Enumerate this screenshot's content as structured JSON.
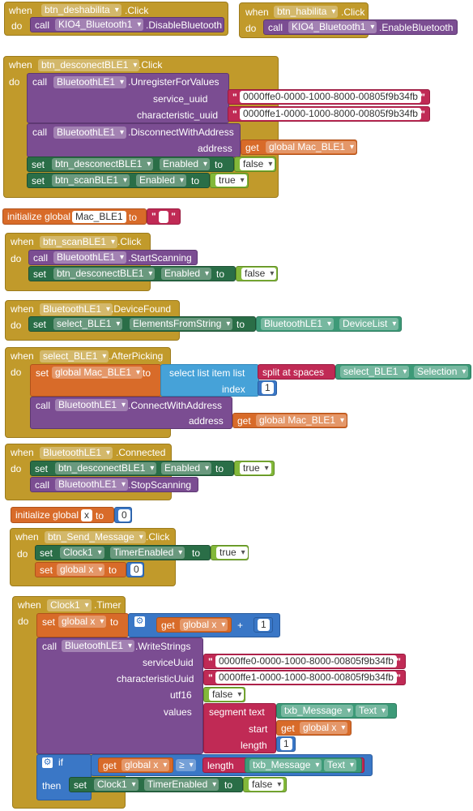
{
  "kw": {
    "when": "when",
    "do": "do",
    "call": "call",
    "set": "set",
    "to": "to",
    "get": "get",
    "initialize_global": "initialize global",
    "if": "if",
    "then": "then",
    "dot": "."
  },
  "ev_disable": {
    "component": "btn_deshabilita",
    "event": ".Click",
    "call_component": "KIO4_Bluetooth1",
    "method": ".DisableBluetooth"
  },
  "ev_enable": {
    "component": "btn_habilita",
    "event": ".Click",
    "call_component": "KIO4_Bluetooth1",
    "method": ".EnableBluetooth"
  },
  "ev_disconnect": {
    "component": "btn_desconectBLE1",
    "event": ".Click",
    "call1_component": "BluetoothLE1",
    "call1_method": ".UnregisterForValues",
    "param_service": "service_uuid",
    "service_value": "0000ffe0-0000-1000-8000-00805f9b34fb",
    "param_char": "characteristic_uuid",
    "char_value": "0000ffe1-0000-1000-8000-00805f9b34fb",
    "call2_component": "BluetoothLE1",
    "call2_method": ".DisconnectWithAddress",
    "param_address": "address",
    "address_var": "global Mac_BLE1",
    "set1_component": "btn_desconectBLE1",
    "set1_prop": "Enabled",
    "set1_value": "false",
    "set2_component": "btn_scanBLE1",
    "set2_prop": "Enabled",
    "set2_value": "true"
  },
  "global_mac": {
    "name": "Mac_BLE1",
    "value": ""
  },
  "ev_scan": {
    "component": "btn_scanBLE1",
    "event": ".Click",
    "call_component": "BluetoothLE1",
    "call_method": ".StartScanning",
    "set_component": "btn_desconectBLE1",
    "set_prop": "Enabled",
    "set_value": "false"
  },
  "ev_found": {
    "component": "BluetoothLE1",
    "event": ".DeviceFound",
    "set_component": "select_BLE1",
    "set_prop": "ElementsFromString",
    "src_component": "BluetoothLE1",
    "src_prop": "DeviceList"
  },
  "ev_picking": {
    "component": "select_BLE1",
    "event": ".AfterPicking",
    "set_var": "global Mac_BLE1",
    "select_label": "select list item  list",
    "index_label": "index",
    "index_value": "1",
    "split_label": "split at spaces",
    "sel_component": "select_BLE1",
    "sel_prop": "Selection",
    "call_component": "BluetoothLE1",
    "call_method": ".ConnectWithAddress",
    "param_address": "address",
    "address_var": "global Mac_BLE1"
  },
  "ev_connected": {
    "component": "BluetoothLE1",
    "event": ".Connected",
    "set_component": "btn_desconectBLE1",
    "set_prop": "Enabled",
    "set_value": "true",
    "call_component": "BluetoothLE1",
    "call_method": ".StopScanning"
  },
  "global_x": {
    "name": "x",
    "value": "0"
  },
  "ev_send": {
    "component": "btn_Send_Message",
    "event": ".Click",
    "set1_component": "Clock1",
    "set1_prop": "TimerEnabled",
    "set1_value": "true",
    "set2_var": "global x",
    "set2_value": "0"
  },
  "ev_timer": {
    "component": "Clock1",
    "event": ".Timer",
    "set_var": "global x",
    "get_var": "global x",
    "plus": "+",
    "add_value": "1",
    "call_component": "BluetoothLE1",
    "call_method": ".WriteStrings",
    "param_service": "serviceUuid",
    "service_value": "0000ffe0-0000-1000-8000-00805f9b34fb",
    "param_char": "characteristicUuid",
    "char_value": "0000ffe1-0000-1000-8000-00805f9b34fb",
    "param_utf16": "utf16",
    "utf16_value": "false",
    "param_values": "values",
    "segment_label": "segment  text",
    "seg_component": "txb_Message",
    "seg_prop": "Text",
    "start_label": "start",
    "start_var": "global x",
    "length_label": "length",
    "length_value": "1",
    "if_get_var": "global x",
    "compare_op": "≥",
    "length_fn": "length",
    "len_component": "txb_Message",
    "len_prop": "Text",
    "then_component": "Clock1",
    "then_prop": "TimerEnabled",
    "then_value": "false"
  },
  "colors": {
    "event": "#c19a2b",
    "procedure": "#7b4d92",
    "setter": "#2a6e47",
    "logic": "#83b83a",
    "variable": "#d86b29",
    "text": "#c02a55",
    "math": "#3a77c6",
    "list": "#46a2d8"
  }
}
